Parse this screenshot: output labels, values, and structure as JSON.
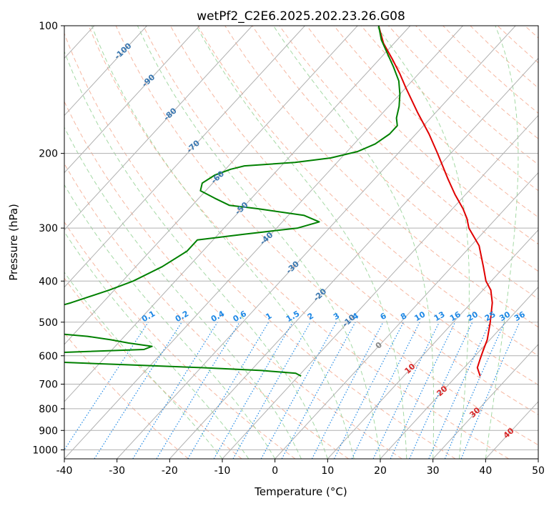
{
  "chart_data": {
    "type": "line",
    "subtype": "skew-T log-P diagram",
    "title": "wetPf2_C2E6.2025.202.23.26.G08",
    "xlabel": "Temperature (°C)",
    "ylabel": "Pressure (hPa)",
    "xlim": [
      -40,
      50
    ],
    "ylim": [
      1050,
      100
    ],
    "y_scale": "log",
    "grid": true,
    "x_ticks": [
      -40,
      -30,
      -20,
      -10,
      0,
      10,
      20,
      30,
      40,
      50
    ],
    "y_ticks": [
      100,
      200,
      300,
      400,
      500,
      600,
      700,
      800,
      900,
      1000
    ],
    "temperature_profile": {
      "color": "#e00000",
      "points": [
        {
          "p": 670,
          "t": 24.5
        },
        {
          "p": 640,
          "t": 22.5
        },
        {
          "p": 610,
          "t": 21.5
        },
        {
          "p": 580,
          "t": 20.5
        },
        {
          "p": 550,
          "t": 19.5
        },
        {
          "p": 500,
          "t": 17
        },
        {
          "p": 450,
          "t": 14
        },
        {
          "p": 420,
          "t": 11.5
        },
        {
          "p": 400,
          "t": 9
        },
        {
          "p": 370,
          "t": 6
        },
        {
          "p": 330,
          "t": 1.5
        },
        {
          "p": 300,
          "t": -3.5
        },
        {
          "p": 285,
          "t": -5.5
        },
        {
          "p": 270,
          "t": -8
        },
        {
          "p": 250,
          "t": -12
        },
        {
          "p": 230,
          "t": -16
        },
        {
          "p": 200,
          "t": -22.5
        },
        {
          "p": 180,
          "t": -27.5
        },
        {
          "p": 160,
          "t": -33.5
        },
        {
          "p": 140,
          "t": -40
        },
        {
          "p": 130,
          "t": -43.5
        },
        {
          "p": 120,
          "t": -47.5
        },
        {
          "p": 110,
          "t": -52
        },
        {
          "p": 100,
          "t": -56
        }
      ]
    },
    "dewpoint_profile": {
      "color": "#008000",
      "points": [
        {
          "p": 670,
          "t": -9.5
        },
        {
          "p": 660,
          "t": -11
        },
        {
          "p": 650,
          "t": -18
        },
        {
          "p": 640,
          "t": -30
        },
        {
          "p": 630,
          "t": -45
        },
        {
          "p": 620,
          "t": -60
        },
        {
          "p": 610,
          "t": -75
        },
        {
          "p": 600,
          "t": -75
        },
        {
          "p": 590,
          "t": -60
        },
        {
          "p": 580,
          "t": -44
        },
        {
          "p": 570,
          "t": -43
        },
        {
          "p": 560,
          "t": -48
        },
        {
          "p": 550,
          "t": -52
        },
        {
          "p": 540,
          "t": -57
        },
        {
          "p": 530,
          "t": -65
        },
        {
          "p": 520,
          "t": -75
        },
        {
          "p": 500,
          "t": -77
        },
        {
          "p": 470,
          "t": -70
        },
        {
          "p": 450,
          "t": -66
        },
        {
          "p": 420,
          "t": -61
        },
        {
          "p": 400,
          "t": -58
        },
        {
          "p": 370,
          "t": -55
        },
        {
          "p": 340,
          "t": -53
        },
        {
          "p": 320,
          "t": -53
        },
        {
          "p": 310,
          "t": -45
        },
        {
          "p": 300,
          "t": -36
        },
        {
          "p": 290,
          "t": -33
        },
        {
          "p": 280,
          "t": -37
        },
        {
          "p": 270,
          "t": -47
        },
        {
          "p": 265,
          "t": -53
        },
        {
          "p": 255,
          "t": -57
        },
        {
          "p": 245,
          "t": -61
        },
        {
          "p": 235,
          "t": -62
        },
        {
          "p": 225,
          "t": -61
        },
        {
          "p": 218,
          "t": -59
        },
        {
          "p": 214,
          "t": -57
        },
        {
          "p": 210,
          "t": -48
        },
        {
          "p": 205,
          "t": -42
        },
        {
          "p": 198,
          "t": -38
        },
        {
          "p": 190,
          "t": -36
        },
        {
          "p": 180,
          "t": -35
        },
        {
          "p": 172,
          "t": -35
        },
        {
          "p": 165,
          "t": -36.5
        },
        {
          "p": 155,
          "t": -38
        },
        {
          "p": 145,
          "t": -40
        },
        {
          "p": 135,
          "t": -42.5
        },
        {
          "p": 125,
          "t": -46
        },
        {
          "p": 115,
          "t": -50
        },
        {
          "p": 108,
          "t": -53
        },
        {
          "p": 100,
          "t": -56
        }
      ]
    },
    "isotherm_labels": [
      {
        "text": "-100",
        "t": -100,
        "p": 115
      },
      {
        "text": "-90",
        "t": -90,
        "p": 135
      },
      {
        "text": "-80",
        "t": -80,
        "p": 162
      },
      {
        "text": "-70",
        "t": -70,
        "p": 193
      },
      {
        "text": "-60",
        "t": -60,
        "p": 228
      },
      {
        "text": "-50",
        "t": -50,
        "p": 270
      },
      {
        "text": "-40",
        "t": -40,
        "p": 318
      },
      {
        "text": "-30",
        "t": -30,
        "p": 372
      },
      {
        "text": "-20",
        "t": -20,
        "p": 432
      },
      {
        "text": "-10",
        "t": -10,
        "p": 497
      },
      {
        "text": "0",
        "t": 0,
        "p": 568
      },
      {
        "text": "10",
        "t": 10,
        "p": 645
      },
      {
        "text": "20",
        "t": 20,
        "p": 728
      },
      {
        "text": "30",
        "t": 30,
        "p": 818
      },
      {
        "text": "40",
        "t": 40,
        "p": 915
      }
    ],
    "mixing_ratio_labels": [
      "0.1",
      "0.2",
      "0.4",
      "0.6",
      "1",
      "1.5",
      "2",
      "3",
      "4",
      "6",
      "8",
      "10",
      "13",
      "16",
      "20",
      "25",
      "30",
      "36"
    ],
    "colors": {
      "isotherm": "#3a77b0",
      "isotherm_zero": "#888888",
      "isotherm_positive": "#d62728",
      "mixing_ratio": "#1e88e5",
      "dry_adiabat": "#f4a58a",
      "moist_adiabat": "#8fd08f",
      "grid": "#b0b0b0"
    }
  }
}
